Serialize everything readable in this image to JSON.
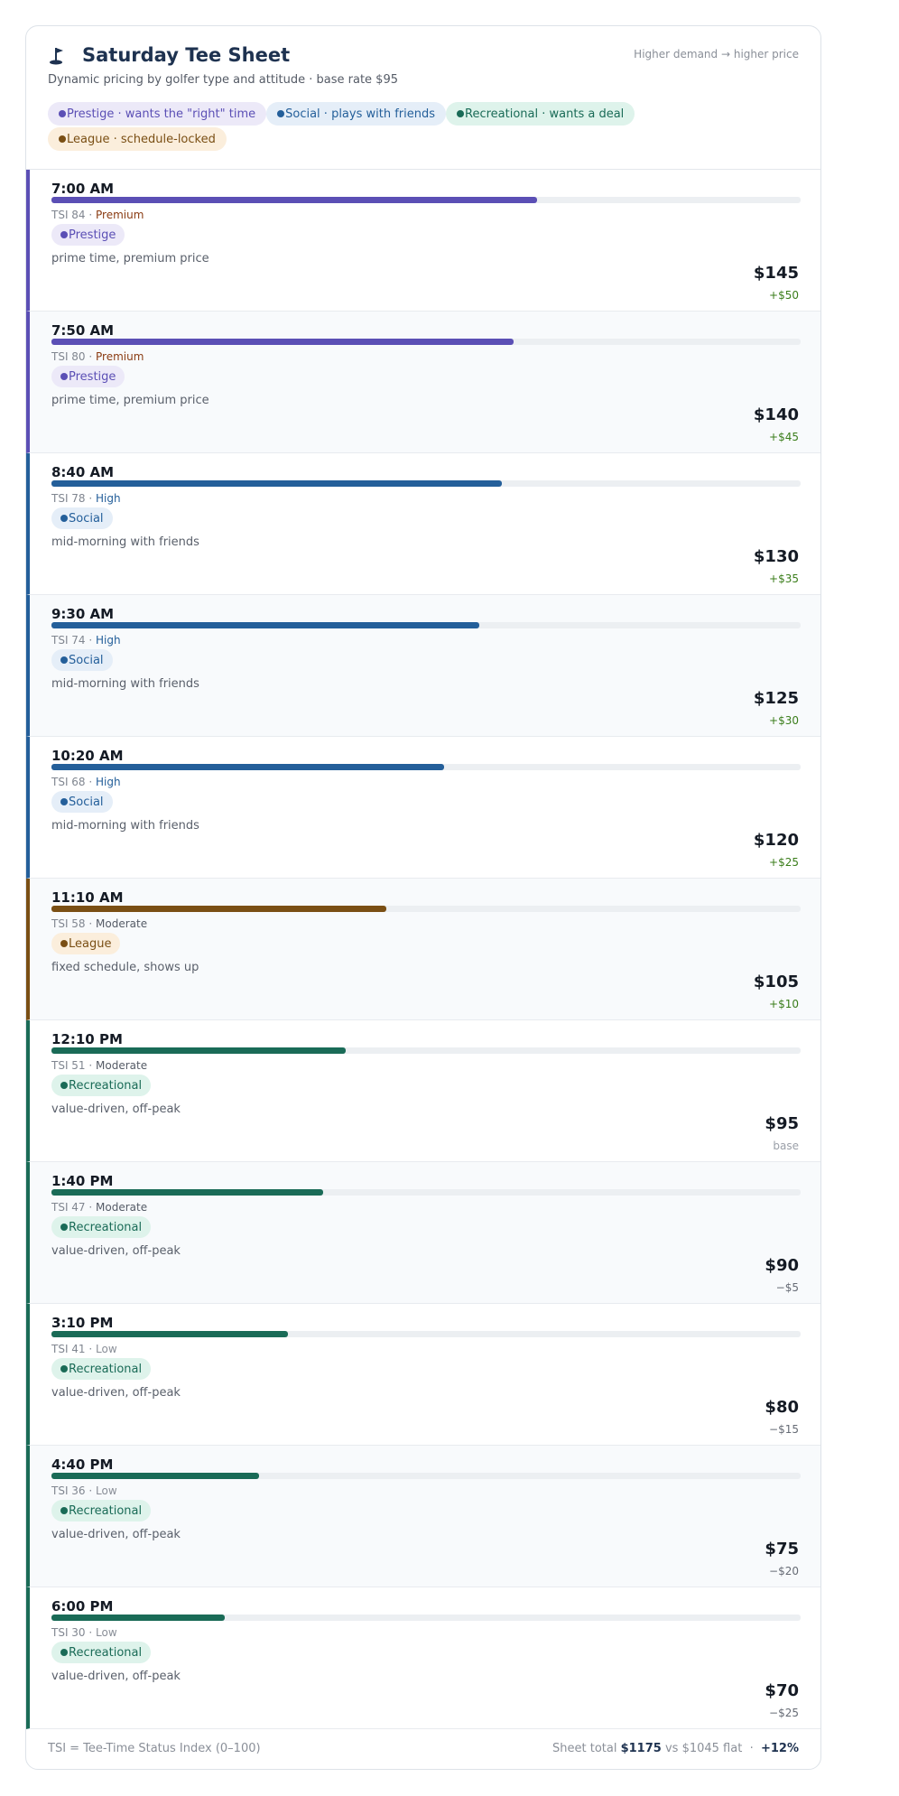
{
  "header": {
    "title": "Saturday Tee Sheet",
    "subtitle": "Dynamic pricing by golfer type and attitude  ·  base rate $95",
    "note": "Higher demand  →  higher price"
  },
  "legend": [
    {
      "label": "Prestige · wants the \"right\" time",
      "color": "#5b4fb5",
      "bg": "#ece9f8"
    },
    {
      "label": "Social · plays with friends",
      "color": "#245f9a",
      "bg": "#e5eef8"
    },
    {
      "label": "Recreational · wants a deal",
      "color": "#1a6b57",
      "bg": "#def3eb"
    },
    {
      "label": "League · schedule-locked",
      "color": "#7a4f14",
      "bg": "#fbeedc"
    }
  ],
  "rows": [
    {
      "time": "7:00 AM",
      "tsi": 84,
      "tsi_label": "TSI 84",
      "level": "Premium",
      "segment": "Prestige",
      "color": "#5b4fb5",
      "bg": "#ece9f8",
      "description": "prime time, premium price",
      "price": "$145",
      "delta": "+$50"
    },
    {
      "time": "7:50 AM",
      "tsi": 80,
      "tsi_label": "TSI 80",
      "level": "Premium",
      "segment": "Prestige",
      "color": "#5b4fb5",
      "bg": "#ece9f8",
      "description": "prime time, premium price",
      "price": "$140",
      "delta": "+$45"
    },
    {
      "time": "8:40 AM",
      "tsi": 78,
      "tsi_label": "TSI 78",
      "level": "High",
      "segment": "Social",
      "color": "#245f9a",
      "bg": "#e5eef8",
      "description": "mid-morning with friends",
      "price": "$130",
      "delta": "+$35"
    },
    {
      "time": "9:30 AM",
      "tsi": 74,
      "tsi_label": "TSI 74",
      "level": "High",
      "segment": "Social",
      "color": "#245f9a",
      "bg": "#e5eef8",
      "description": "mid-morning with friends",
      "price": "$125",
      "delta": "+$30"
    },
    {
      "time": "10:20 AM",
      "tsi": 68,
      "tsi_label": "TSI 68",
      "level": "High",
      "segment": "Social",
      "color": "#245f9a",
      "bg": "#e5eef8",
      "description": "mid-morning with friends",
      "price": "$120",
      "delta": "+$25"
    },
    {
      "time": "11:10 AM",
      "tsi": 58,
      "tsi_label": "TSI 58",
      "level": "Moderate",
      "segment": "League",
      "color": "#7a4f14",
      "bg": "#fbeedc",
      "description": "fixed schedule, shows up",
      "price": "$105",
      "delta": "+$10"
    },
    {
      "time": "12:10 PM",
      "tsi": 51,
      "tsi_label": "TSI 51",
      "level": "Moderate",
      "segment": "Recreational",
      "color": "#1a6b57",
      "bg": "#def3eb",
      "description": "value-driven, off-peak",
      "price": "$95",
      "delta": "base"
    },
    {
      "time": "1:40 PM",
      "tsi": 47,
      "tsi_label": "TSI 47",
      "level": "Moderate",
      "segment": "Recreational",
      "color": "#1a6b57",
      "bg": "#def3eb",
      "description": "value-driven, off-peak",
      "price": "$90",
      "delta": "−$5"
    },
    {
      "time": "3:10 PM",
      "tsi": 41,
      "tsi_label": "TSI 41",
      "level": "Low",
      "segment": "Recreational",
      "color": "#1a6b57",
      "bg": "#def3eb",
      "description": "value-driven, off-peak",
      "price": "$80",
      "delta": "−$15"
    },
    {
      "time": "4:40 PM",
      "tsi": 36,
      "tsi_label": "TSI 36",
      "level": "Low",
      "segment": "Recreational",
      "color": "#1a6b57",
      "bg": "#def3eb",
      "description": "value-driven, off-peak",
      "price": "$75",
      "delta": "−$20"
    },
    {
      "time": "6:00 PM",
      "tsi": 30,
      "tsi_label": "TSI 30",
      "level": "Low",
      "segment": "Recreational",
      "color": "#1a6b57",
      "bg": "#def3eb",
      "description": "value-driven, off-peak",
      "price": "$70",
      "delta": "−$25"
    }
  ],
  "level_colors": {
    "Premium": "#8a3b12",
    "High": "#245f9a",
    "Moderate": "#555b66",
    "Low": "#8a8f98"
  },
  "footer": {
    "note": "TSI = Tee-Time Status Index (0–100)",
    "total_prefix": "Sheet total",
    "total": "$1175",
    "flat": "vs $1045 flat",
    "sep": "·",
    "change": "+12%"
  }
}
